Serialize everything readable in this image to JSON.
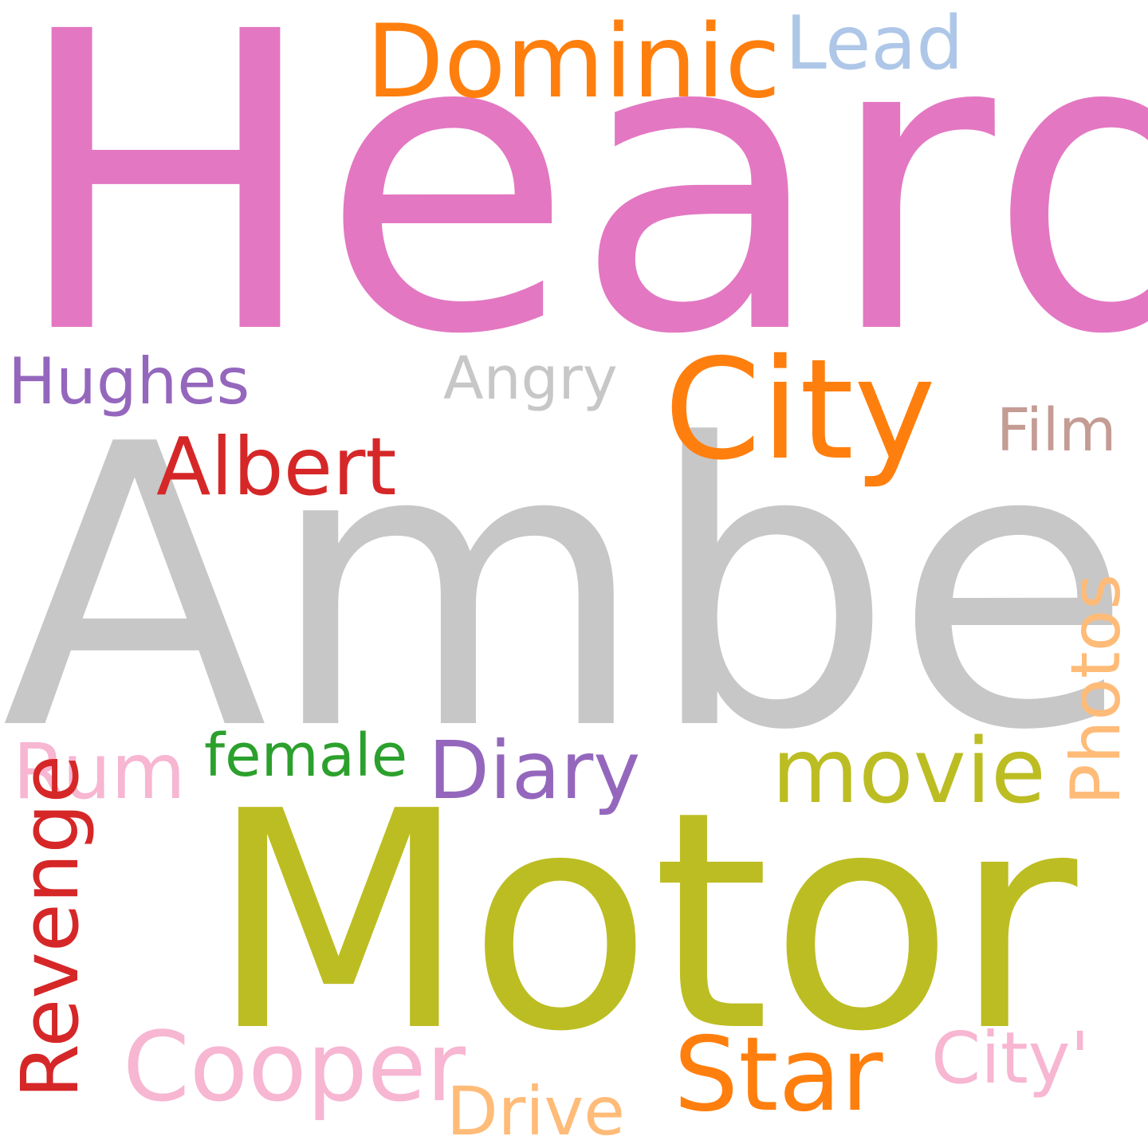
{
  "words": {
    "heard": {
      "text": "Heard",
      "color": "#e377c2"
    },
    "amber": {
      "text": "Amber",
      "color": "#c7c7c7"
    },
    "motor": {
      "text": "Motor",
      "color": "#bcbd22"
    },
    "city": {
      "text": "City",
      "color": "#ff7f0e"
    },
    "dominic": {
      "text": "Dominic",
      "color": "#ff7f0e"
    },
    "lead": {
      "text": "Lead",
      "color": "#aec7e8"
    },
    "hughes": {
      "text": "Hughes",
      "color": "#9467bd"
    },
    "angry": {
      "text": "Angry",
      "color": "#c7c7c7"
    },
    "film": {
      "text": "Film",
      "color": "#c49c94"
    },
    "albert": {
      "text": "Albert",
      "color": "#d62728"
    },
    "photos": {
      "text": "Photos",
      "color": "#ffbb78"
    },
    "rum": {
      "text": "Rum",
      "color": "#f7b6d2"
    },
    "female": {
      "text": "female",
      "color": "#2ca02c"
    },
    "diary": {
      "text": "Diary",
      "color": "#9467bd"
    },
    "movie": {
      "text": "movie",
      "color": "#bcbd22"
    },
    "revenge": {
      "text": "Revenge",
      "color": "#d62728"
    },
    "cooper": {
      "text": "Cooper",
      "color": "#f7b6d2"
    },
    "star": {
      "text": "Star",
      "color": "#ff7f0e"
    },
    "city2": {
      "text": "City'",
      "color": "#f7b6d2"
    },
    "drive": {
      "text": "Drive",
      "color": "#ffbb78"
    }
  }
}
